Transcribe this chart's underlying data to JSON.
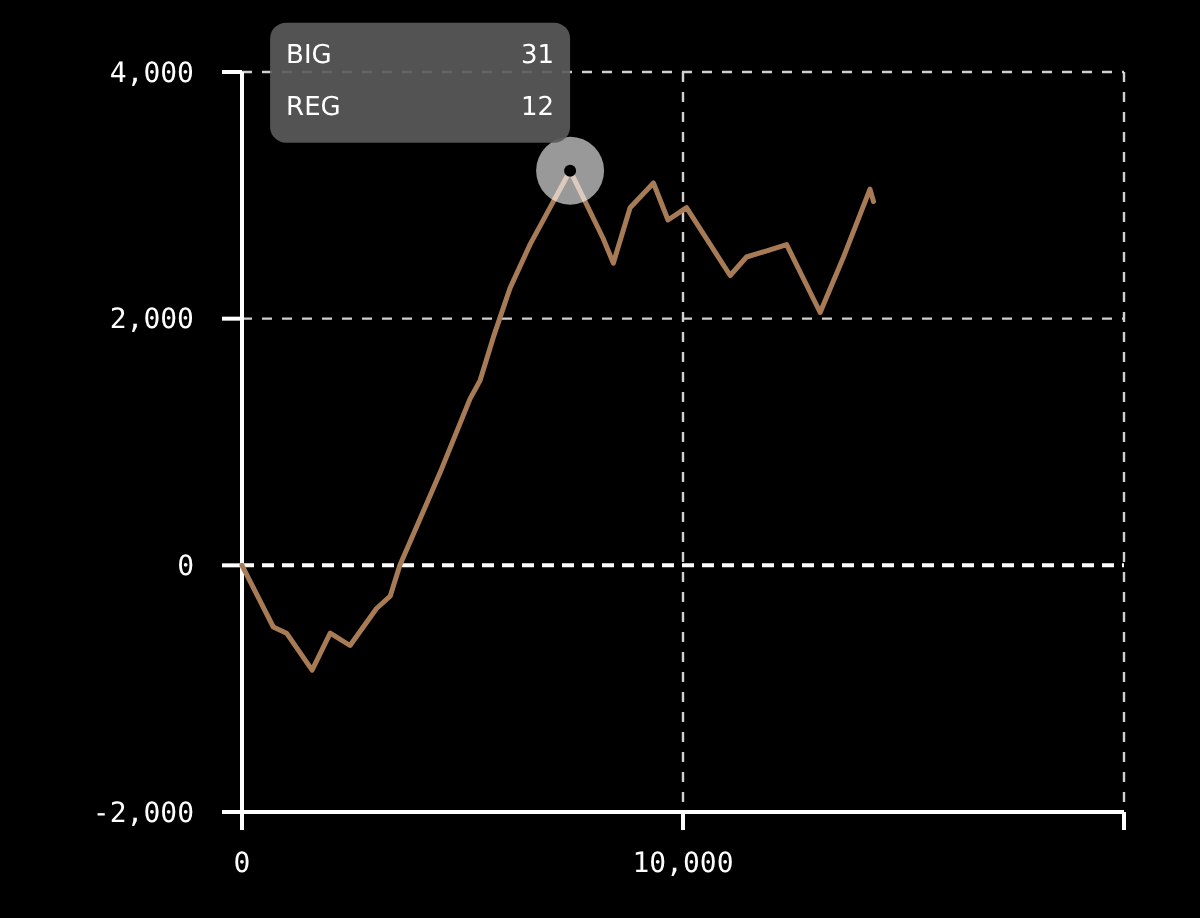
{
  "chart_data": {
    "type": "line",
    "x": [
      0,
      710,
      1010,
      1590,
      2000,
      2450,
      3050,
      3360,
      3580,
      4490,
      5170,
      5400,
      5700,
      6080,
      6530,
      7440,
      8190,
      8420,
      8800,
      9330,
      9660,
      10080,
      11070,
      11440,
      11900,
      12350,
      13110,
      13640,
      14240,
      14320
    ],
    "series": [
      {
        "color": "#a87b57",
        "values": [
          0,
          -500,
          -550,
          -850,
          -550,
          -650,
          -350,
          -250,
          0,
          750,
          1350,
          1500,
          1850,
          2250,
          2600,
          3200,
          2650,
          2450,
          2900,
          3100,
          2800,
          2900,
          2350,
          2500,
          2550,
          2600,
          2050,
          2500,
          3050,
          2950
        ]
      }
    ],
    "xlim": [
      0,
      20000
    ],
    "xticks": [
      {
        "value": 0,
        "label": "0"
      },
      {
        "value": 10000,
        "label": "10,000"
      },
      {
        "value": 20000,
        "label": null
      }
    ],
    "ylim": [
      -2000,
      4000
    ],
    "yticks": [
      {
        "value": -2000,
        "label": "-2,000"
      },
      {
        "value": 0,
        "label": "0"
      },
      {
        "value": 2000,
        "label": "2,000"
      },
      {
        "value": 4000,
        "label": "4,000"
      }
    ],
    "grid": true,
    "marker": "none",
    "line_style": "solid",
    "ref_lines": [
      {
        "axis": "y",
        "value": 0,
        "color": "#ffffff",
        "line_style": "dashed"
      }
    ],
    "annotations": [
      "BIG",
      "31",
      "REG",
      "12"
    ]
  }
}
